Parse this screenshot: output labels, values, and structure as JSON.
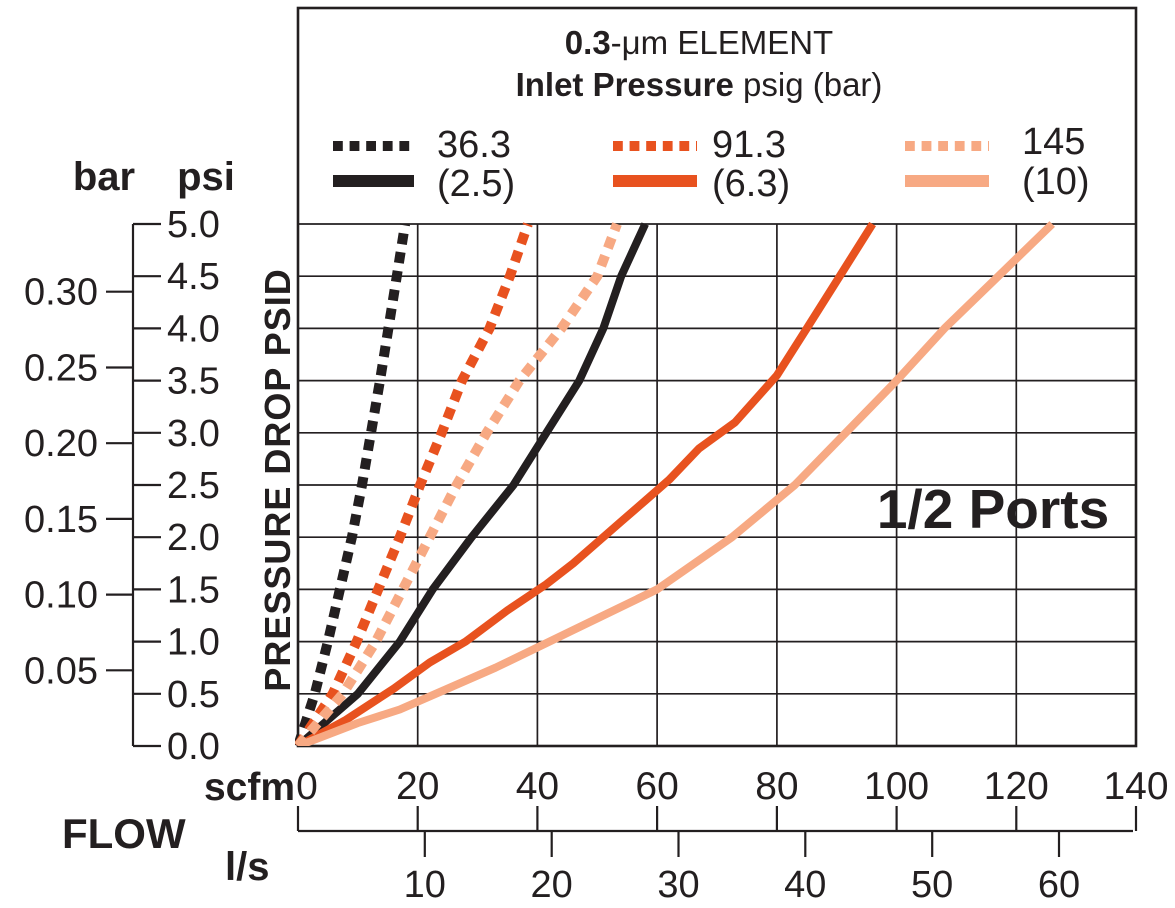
{
  "title": {
    "line1_bold": "0.3",
    "line1_rest": "-μm ELEMENT",
    "line2_bold": "Inlet Pressure",
    "line2_rest": " psig (bar)"
  },
  "legend": {
    "columns": [
      {
        "dotted_label": "36.3",
        "solid_label": "(2.5)",
        "color": "#231f20"
      },
      {
        "dotted_label": "91.3",
        "solid_label": "(6.3)",
        "color": "#e8521f"
      },
      {
        "dotted_label": "145",
        "solid_label": "(10)",
        "color": "#f7a983"
      }
    ]
  },
  "left_axis": {
    "unit_secondary": "bar",
    "unit_primary": "psi",
    "title": "PRESSURE DROP PSID",
    "psi_ticks": [
      {
        "label": "0.0",
        "value": 0.0
      },
      {
        "label": "0.5",
        "value": 0.5
      },
      {
        "label": "1.0",
        "value": 1.0
      },
      {
        "label": "1.5",
        "value": 1.5
      },
      {
        "label": "2.0",
        "value": 2.0
      },
      {
        "label": "2.5",
        "value": 2.5
      },
      {
        "label": "3.0",
        "value": 3.0
      },
      {
        "label": "3.5",
        "value": 3.5
      },
      {
        "label": "4.0",
        "value": 4.0
      },
      {
        "label": "4.5",
        "value": 4.5
      },
      {
        "label": "5.0",
        "value": 5.0
      }
    ],
    "bar_ticks": [
      {
        "label": "0.05",
        "value": 0.05
      },
      {
        "label": "0.10",
        "value": 0.1
      },
      {
        "label": "0.15",
        "value": 0.15
      },
      {
        "label": "0.20",
        "value": 0.2
      },
      {
        "label": "0.25",
        "value": 0.25
      },
      {
        "label": "0.30",
        "value": 0.3
      }
    ]
  },
  "bottom_axis": {
    "title": "FLOW",
    "unit_primary": "scfm",
    "unit_secondary": "l/s",
    "scfm_ticks": [
      {
        "label": "0",
        "value": 0
      },
      {
        "label": "20",
        "value": 20
      },
      {
        "label": "40",
        "value": 40
      },
      {
        "label": "60",
        "value": 60
      },
      {
        "label": "80",
        "value": 80
      },
      {
        "label": "100",
        "value": 100
      },
      {
        "label": "120",
        "value": 120
      },
      {
        "label": "140",
        "value": 140
      }
    ],
    "ls_ticks": [
      {
        "label": "10",
        "value": 10
      },
      {
        "label": "20",
        "value": 20
      },
      {
        "label": "30",
        "value": 30
      },
      {
        "label": "40",
        "value": 40
      },
      {
        "label": "50",
        "value": 50
      },
      {
        "label": "60",
        "value": 60
      }
    ]
  },
  "annotation": "1/2 Ports",
  "colors": {
    "ink": "#231f20",
    "orange": "#e8521f",
    "light_orange": "#f7a983"
  },
  "chart_data": {
    "type": "line",
    "title": "0.3-μm ELEMENT",
    "subtitle": "Inlet Pressure psig (bar)",
    "xlabel": "FLOW scfm (l/s)",
    "ylabel": "PRESSURE DROP PSID",
    "xlim": [
      0,
      140
    ],
    "ylim": [
      0,
      5
    ],
    "grid": true,
    "x_unit": "scfm",
    "x_secondary_unit": "l/s",
    "y_unit": "psi",
    "y_secondary_unit": "bar",
    "unit_conversions": {
      "scfm_per_ls": 2.11888,
      "psi_per_bar": 14.5038
    },
    "annotation": "1/2 Ports",
    "legend_position": "top",
    "series": [
      {
        "name": "36.3 psig (2.5 bar) dotted",
        "inlet_psig": 36.3,
        "inlet_bar": 2.5,
        "style": "dotted",
        "color": "#231f20",
        "points": [
          [
            0,
            0
          ],
          [
            2.8,
            0.5
          ],
          [
            5,
            1.0
          ],
          [
            7,
            1.5
          ],
          [
            9,
            2.0
          ],
          [
            10.7,
            2.5
          ],
          [
            12.2,
            3.0
          ],
          [
            13.7,
            3.5
          ],
          [
            15.1,
            4.0
          ],
          [
            16.5,
            4.5
          ],
          [
            17.9,
            5.0
          ]
        ]
      },
      {
        "name": "36.3 psig (2.5 bar) solid",
        "inlet_psig": 36.3,
        "inlet_bar": 2.5,
        "style": "solid",
        "color": "#231f20",
        "points": [
          [
            0,
            0
          ],
          [
            5,
            0.25
          ],
          [
            10,
            0.5
          ],
          [
            17,
            1.0
          ],
          [
            22.5,
            1.5
          ],
          [
            29,
            2.0
          ],
          [
            36,
            2.5
          ],
          [
            41.5,
            3.0
          ],
          [
            47,
            3.5
          ],
          [
            51,
            4.0
          ],
          [
            54,
            4.5
          ],
          [
            56,
            4.75
          ],
          [
            58,
            5.0
          ]
        ]
      },
      {
        "name": "91.3 psig (6.3 bar) dotted",
        "inlet_psig": 91.3,
        "inlet_bar": 6.3,
        "style": "dotted",
        "color": "#e8521f",
        "points": [
          [
            0,
            0
          ],
          [
            5.8,
            0.5
          ],
          [
            9.8,
            1.0
          ],
          [
            13.4,
            1.5
          ],
          [
            17,
            2.0
          ],
          [
            20.4,
            2.5
          ],
          [
            24,
            3.0
          ],
          [
            27.4,
            3.5
          ],
          [
            32,
            4.0
          ],
          [
            35.4,
            4.5
          ],
          [
            38.4,
            5.0
          ]
        ]
      },
      {
        "name": "91.3 psig (6.3 bar) solid",
        "inlet_psig": 91.3,
        "inlet_bar": 6.3,
        "style": "solid",
        "color": "#e8521f",
        "points": [
          [
            0,
            0
          ],
          [
            8,
            0.25
          ],
          [
            16,
            0.55
          ],
          [
            22,
            0.8
          ],
          [
            28,
            1.0
          ],
          [
            35,
            1.3
          ],
          [
            41.5,
            1.55
          ],
          [
            46,
            1.75
          ],
          [
            50,
            1.95
          ],
          [
            54,
            2.15
          ],
          [
            58,
            2.35
          ],
          [
            62,
            2.55
          ],
          [
            67,
            2.85
          ],
          [
            73,
            3.1
          ],
          [
            80,
            3.55
          ],
          [
            85,
            4.0
          ],
          [
            90.5,
            4.5
          ],
          [
            96,
            5.0
          ]
        ]
      },
      {
        "name": "145 psig (10 bar) dotted",
        "inlet_psig": 145,
        "inlet_bar": 10,
        "style": "dotted",
        "color": "#f7a983",
        "points": [
          [
            0,
            0
          ],
          [
            7.5,
            0.5
          ],
          [
            13,
            1.0
          ],
          [
            17.5,
            1.5
          ],
          [
            22,
            2.0
          ],
          [
            26.5,
            2.5
          ],
          [
            31.5,
            3.0
          ],
          [
            37,
            3.5
          ],
          [
            44,
            4.0
          ],
          [
            50,
            4.5
          ],
          [
            53.3,
            5.0
          ]
        ]
      },
      {
        "name": "145 psig (10 bar) solid",
        "inlet_psig": 145,
        "inlet_bar": 10,
        "style": "solid",
        "color": "#f7a983",
        "points": [
          [
            0,
            0
          ],
          [
            10,
            0.22
          ],
          [
            17,
            0.35
          ],
          [
            23,
            0.5
          ],
          [
            33,
            0.75
          ],
          [
            42,
            1.0
          ],
          [
            51,
            1.25
          ],
          [
            60,
            1.5
          ],
          [
            72.5,
            2.0
          ],
          [
            83,
            2.5
          ],
          [
            91.5,
            3.0
          ],
          [
            100,
            3.5
          ],
          [
            108,
            4.0
          ],
          [
            117,
            4.5
          ],
          [
            126,
            5.0
          ]
        ]
      }
    ]
  }
}
